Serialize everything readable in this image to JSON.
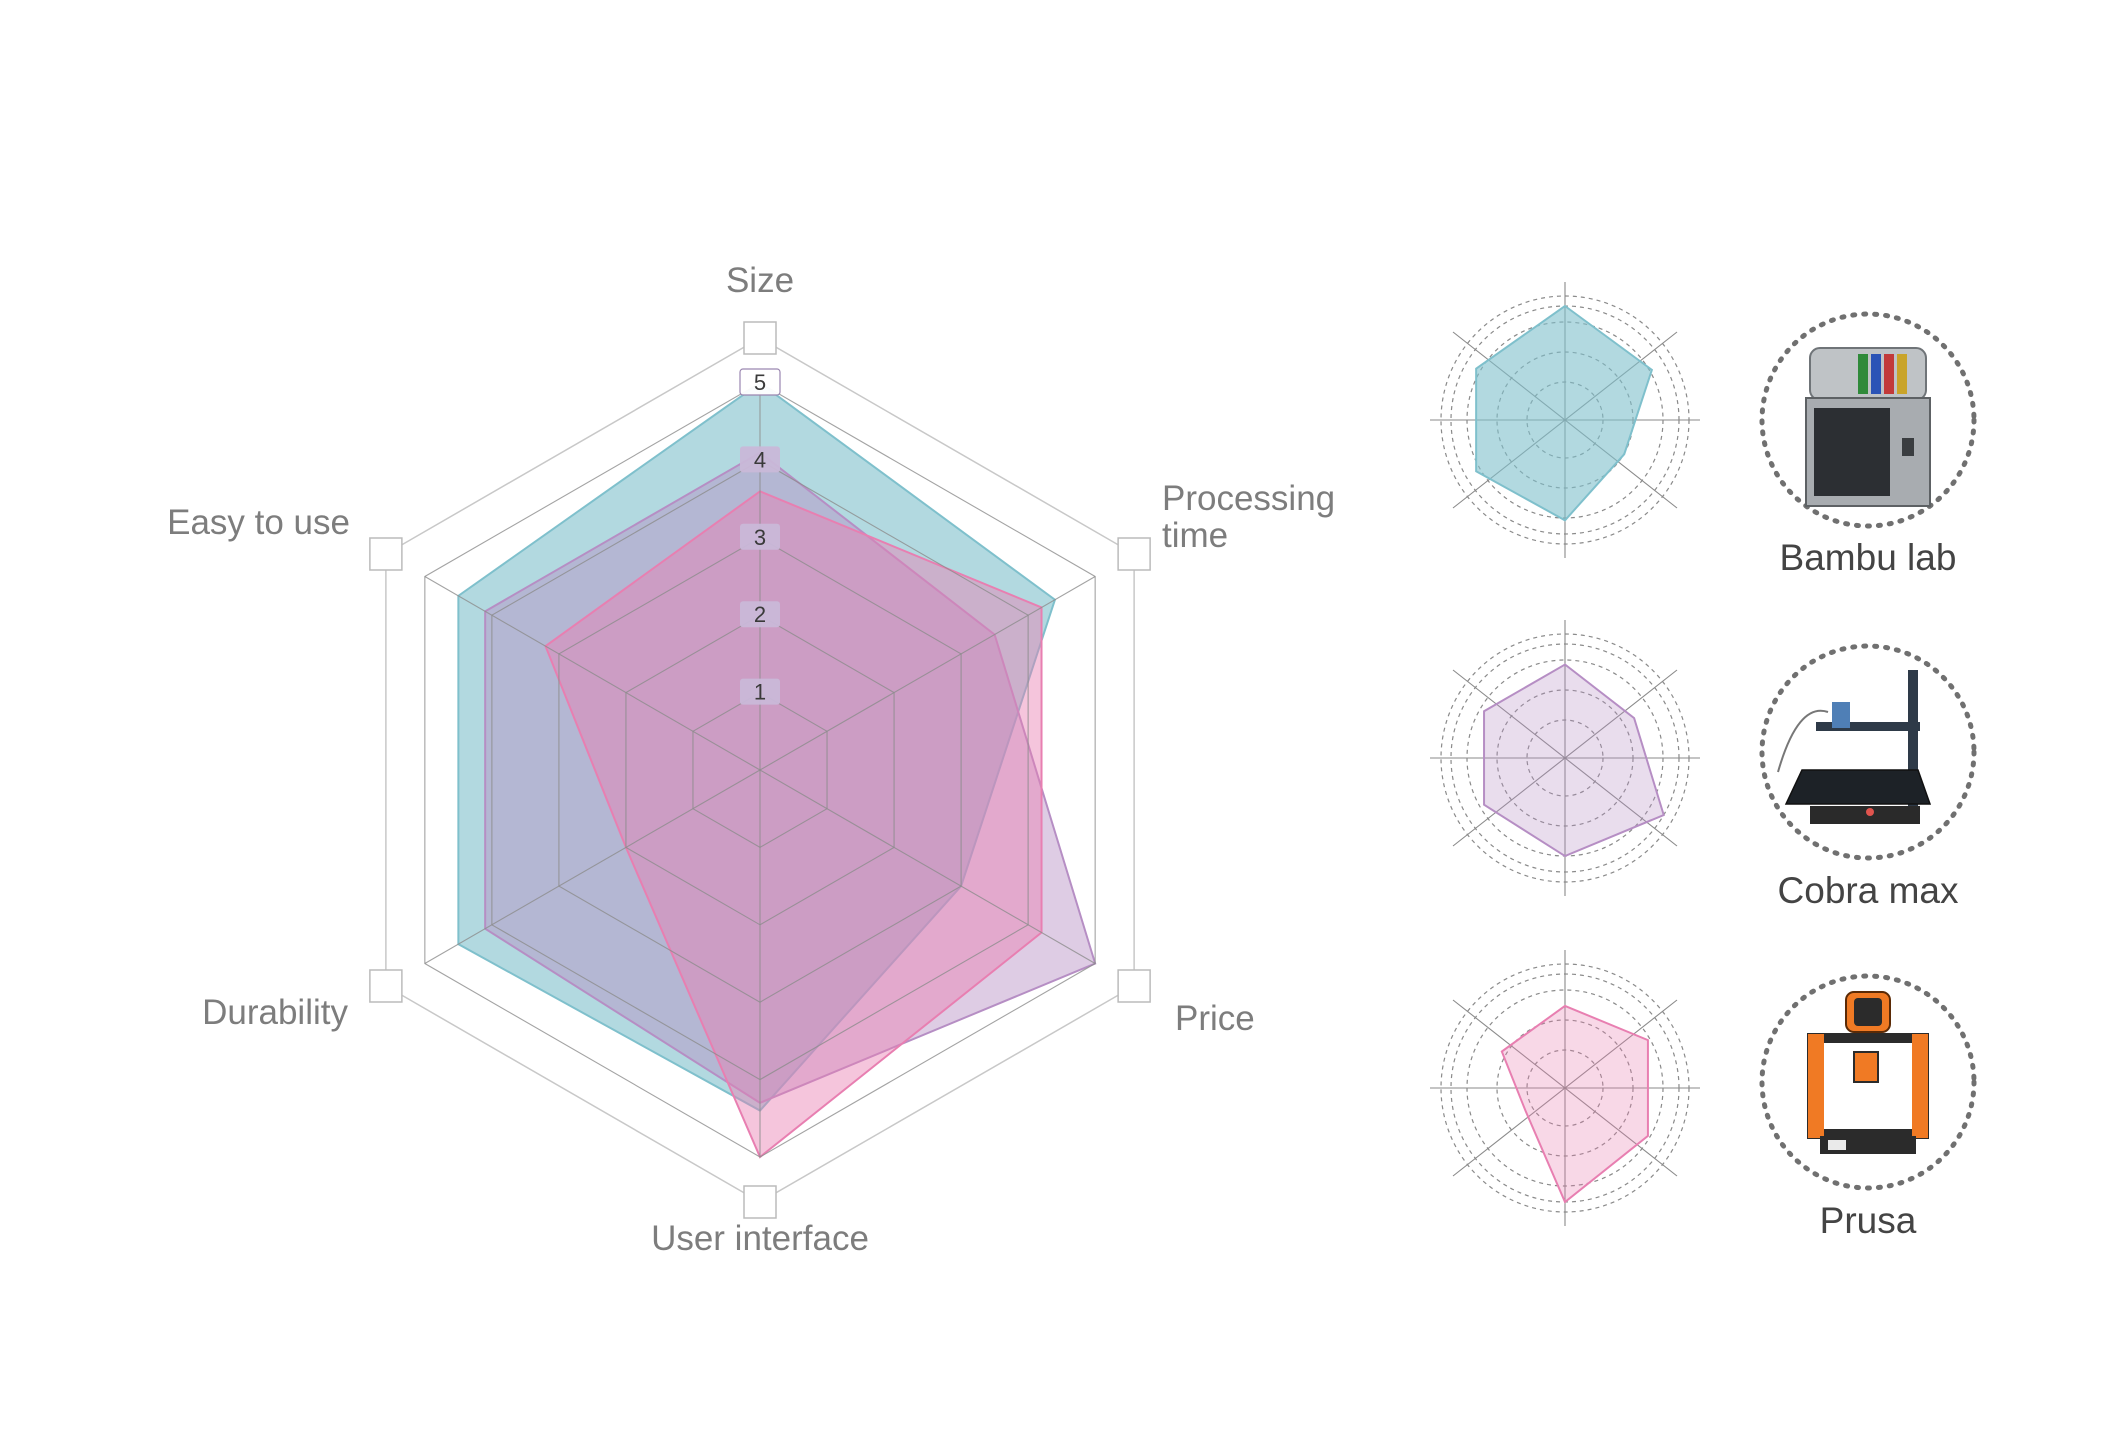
{
  "chart_data": {
    "type": "radar",
    "axes": [
      "Size",
      "Processing time",
      "Price",
      "User interface",
      "Durability",
      "Easy to use"
    ],
    "axis_label_lines": [
      [
        "Size"
      ],
      [
        "Processing",
        "time"
      ],
      [
        "Price"
      ],
      [
        "User interface"
      ],
      [
        "Durability"
      ],
      [
        "Easy to use"
      ]
    ],
    "ticks": [
      "1",
      "2",
      "3",
      "4",
      "5"
    ],
    "range": [
      0,
      5
    ],
    "series": [
      {
        "name": "Bambu lab",
        "color": "#7fc0cc",
        "values": [
          5.0,
          4.4,
          3.0,
          4.4,
          4.5,
          4.5
        ]
      },
      {
        "name": "Cobra max",
        "color": "#b68ec4",
        "values": [
          4.1,
          3.5,
          5.0,
          4.3,
          4.1,
          4.1
        ]
      },
      {
        "name": "Prusa",
        "color": "#e87fb1",
        "values": [
          3.6,
          4.2,
          4.2,
          5.0,
          2.0,
          3.2
        ]
      }
    ]
  },
  "legend": {
    "items": [
      {
        "label": "Bambu lab",
        "icon": "bambu-lab-printer-icon"
      },
      {
        "label": "Cobra max",
        "icon": "cobra-max-printer-icon"
      },
      {
        "label": "Prusa",
        "icon": "prusa-printer-icon"
      }
    ]
  }
}
